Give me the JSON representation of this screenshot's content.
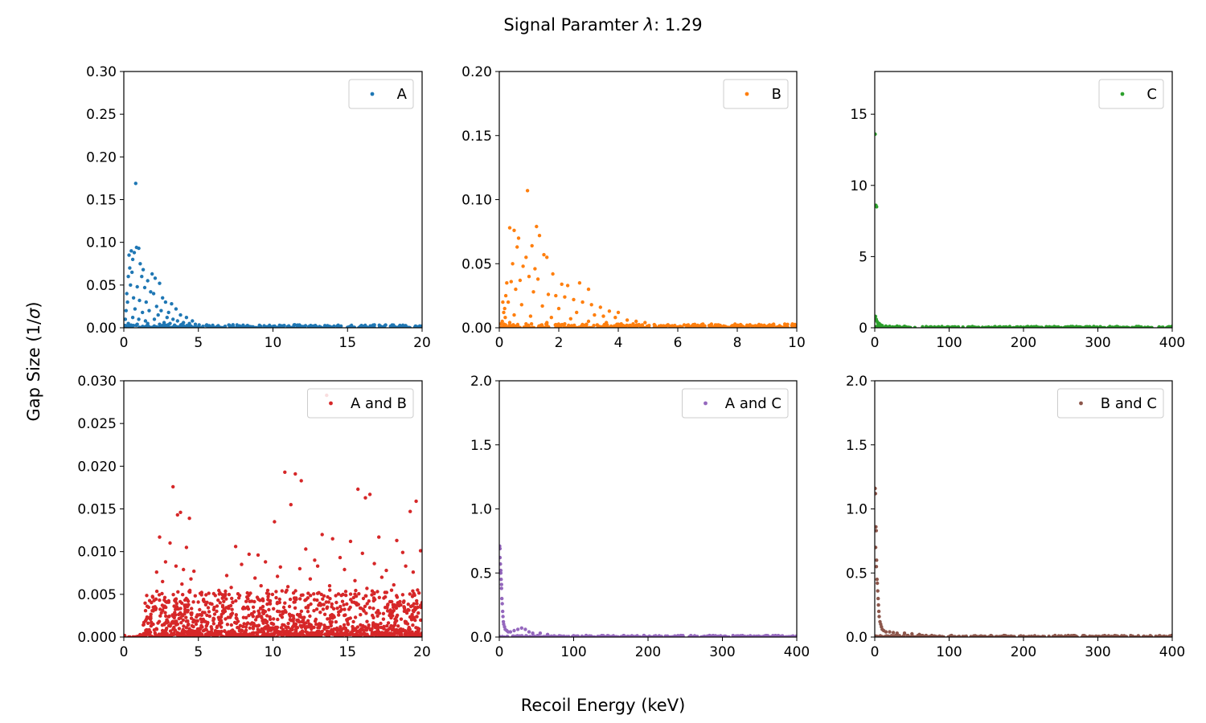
{
  "figure": {
    "title_prefix": "Signal Paramter ",
    "title_symbol": "λ",
    "title_suffix": ":  1.29",
    "xlabel": "Recoil Energy (keV)",
    "ylabel_prefix": "Gap Size (1/",
    "ylabel_symbol": "σ",
    "ylabel_suffix": ")"
  },
  "chart_data": [
    {
      "type": "scatter",
      "label": "A",
      "color": "#1f77b4",
      "xlim": [
        0,
        20
      ],
      "ylim": [
        0,
        0.3
      ],
      "xticks": [
        0,
        5,
        10,
        15,
        20
      ],
      "xtick_labels": [
        "0",
        "5",
        "10",
        "15",
        "20"
      ],
      "yticks": [
        0,
        0.05,
        0.1,
        0.15,
        0.2,
        0.25,
        0.3
      ],
      "ytick_labels": [
        "0.00",
        "0.05",
        "0.10",
        "0.15",
        "0.20",
        "0.25",
        "0.30"
      ],
      "legend": "top-right",
      "points": [
        [
          0.8,
          0.169
        ],
        [
          0.35,
          0.085
        ],
        [
          0.5,
          0.09
        ],
        [
          0.7,
          0.088
        ],
        [
          0.85,
          0.094
        ],
        [
          1.0,
          0.093
        ],
        [
          0.6,
          0.08
        ],
        [
          0.4,
          0.07
        ],
        [
          1.1,
          0.075
        ],
        [
          1.3,
          0.068
        ],
        [
          0.3,
          0.06
        ],
        [
          0.55,
          0.065
        ],
        [
          1.2,
          0.06
        ],
        [
          1.6,
          0.055
        ],
        [
          1.9,
          0.063
        ],
        [
          2.1,
          0.058
        ],
        [
          2.4,
          0.052
        ],
        [
          0.45,
          0.05
        ],
        [
          0.9,
          0.048
        ],
        [
          1.4,
          0.047
        ],
        [
          1.8,
          0.042
        ],
        [
          2.0,
          0.04
        ],
        [
          2.6,
          0.035
        ],
        [
          2.8,
          0.03
        ],
        [
          3.2,
          0.028
        ],
        [
          3.5,
          0.022
        ],
        [
          0.2,
          0.04
        ],
        [
          0.25,
          0.03
        ],
        [
          0.65,
          0.035
        ],
        [
          1.05,
          0.032
        ],
        [
          1.5,
          0.03
        ],
        [
          2.2,
          0.025
        ],
        [
          2.5,
          0.02
        ],
        [
          3.0,
          0.018
        ],
        [
          3.8,
          0.015
        ],
        [
          4.2,
          0.012
        ],
        [
          4.6,
          0.008
        ],
        [
          0.15,
          0.02
        ],
        [
          0.75,
          0.022
        ],
        [
          1.25,
          0.018
        ],
        [
          1.7,
          0.02
        ],
        [
          2.3,
          0.015
        ],
        [
          2.9,
          0.012
        ],
        [
          3.3,
          0.01
        ],
        [
          3.6,
          0.008
        ],
        [
          4.0,
          0.006
        ],
        [
          4.4,
          0.005
        ],
        [
          4.8,
          0.004
        ],
        [
          0.1,
          0.01
        ],
        [
          0.6,
          0.012
        ],
        [
          1.0,
          0.01
        ],
        [
          1.45,
          0.008
        ],
        [
          2.05,
          0.01
        ],
        [
          2.7,
          0.006
        ],
        [
          3.1,
          0.005
        ],
        [
          3.9,
          0.004
        ],
        [
          0.3,
          0.005
        ],
        [
          0.9,
          0.004
        ],
        [
          1.6,
          0.005
        ],
        [
          2.4,
          0.004
        ],
        [
          3.4,
          0.003
        ],
        [
          4.5,
          0.002
        ],
        [
          0.05,
          0.002
        ]
      ],
      "band": {
        "x": [
          0,
          20
        ],
        "y": [
          0,
          0.0035
        ],
        "density": 320
      }
    },
    {
      "type": "scatter",
      "label": "B",
      "color": "#ff7f0e",
      "xlim": [
        0,
        10
      ],
      "ylim": [
        0,
        0.2
      ],
      "xticks": [
        0,
        2,
        4,
        6,
        8,
        10
      ],
      "xtick_labels": [
        "0",
        "2",
        "4",
        "6",
        "8",
        "10"
      ],
      "yticks": [
        0,
        0.05,
        0.1,
        0.15,
        0.2
      ],
      "ytick_labels": [
        "0.00",
        "0.05",
        "0.10",
        "0.15",
        "0.20"
      ],
      "legend": "top-right",
      "points": [
        [
          0.95,
          0.107
        ],
        [
          0.35,
          0.078
        ],
        [
          0.5,
          0.076
        ],
        [
          0.65,
          0.07
        ],
        [
          1.25,
          0.079
        ],
        [
          1.35,
          0.072
        ],
        [
          0.6,
          0.063
        ],
        [
          1.5,
          0.057
        ],
        [
          1.6,
          0.055
        ],
        [
          1.1,
          0.064
        ],
        [
          0.9,
          0.055
        ],
        [
          0.45,
          0.05
        ],
        [
          0.8,
          0.048
        ],
        [
          1.2,
          0.046
        ],
        [
          0.25,
          0.035
        ],
        [
          0.4,
          0.036
        ],
        [
          0.7,
          0.037
        ],
        [
          1.0,
          0.04
        ],
        [
          1.3,
          0.038
        ],
        [
          1.8,
          0.042
        ],
        [
          2.1,
          0.034
        ],
        [
          2.3,
          0.033
        ],
        [
          2.7,
          0.035
        ],
        [
          3.0,
          0.03
        ],
        [
          0.55,
          0.03
        ],
        [
          1.15,
          0.028
        ],
        [
          1.65,
          0.026
        ],
        [
          1.9,
          0.025
        ],
        [
          2.2,
          0.024
        ],
        [
          2.5,
          0.022
        ],
        [
          2.8,
          0.02
        ],
        [
          3.1,
          0.018
        ],
        [
          3.4,
          0.016
        ],
        [
          3.7,
          0.013
        ],
        [
          4.0,
          0.012
        ],
        [
          0.3,
          0.02
        ],
        [
          0.75,
          0.018
        ],
        [
          1.45,
          0.017
        ],
        [
          2.0,
          0.015
        ],
        [
          2.6,
          0.012
        ],
        [
          3.2,
          0.01
        ],
        [
          3.5,
          0.009
        ],
        [
          3.9,
          0.008
        ],
        [
          4.3,
          0.006
        ],
        [
          4.6,
          0.005
        ],
        [
          4.9,
          0.004
        ],
        [
          0.15,
          0.012
        ],
        [
          0.2,
          0.008
        ],
        [
          0.5,
          0.01
        ],
        [
          1.05,
          0.009
        ],
        [
          1.75,
          0.008
        ],
        [
          2.4,
          0.007
        ],
        [
          3.0,
          0.005
        ],
        [
          3.6,
          0.004
        ],
        [
          4.1,
          0.003
        ],
        [
          4.5,
          0.003
        ],
        [
          0.1,
          0.005
        ],
        [
          0.05,
          0.003
        ],
        [
          0.35,
          0.004
        ],
        [
          0.9,
          0.003
        ],
        [
          1.6,
          0.004
        ],
        [
          2.2,
          0.003
        ],
        [
          3.3,
          0.002
        ],
        [
          4.8,
          0.002
        ],
        [
          0.12,
          0.02
        ],
        [
          0.22,
          0.025
        ],
        [
          0.18,
          0.015
        ]
      ],
      "band": {
        "x": [
          0,
          10
        ],
        "y": [
          0,
          0.003
        ],
        "density": 320
      }
    },
    {
      "type": "scatter",
      "label": "C",
      "color": "#2ca02c",
      "xlim": [
        0,
        400
      ],
      "ylim": [
        0,
        18
      ],
      "xticks": [
        0,
        100,
        200,
        300,
        400
      ],
      "xtick_labels": [
        "0",
        "100",
        "200",
        "300",
        "400"
      ],
      "yticks": [
        0,
        5,
        10,
        15
      ],
      "ytick_labels": [
        "0",
        "5",
        "10",
        "15"
      ],
      "legend": "top-right",
      "points": [
        [
          0.5,
          13.6
        ],
        [
          1.5,
          8.6
        ],
        [
          2.5,
          8.5
        ],
        [
          3,
          0.45
        ],
        [
          4,
          0.35
        ],
        [
          5,
          0.25
        ],
        [
          6,
          0.3
        ],
        [
          8,
          0.2
        ],
        [
          10,
          0.15
        ],
        [
          15,
          0.12
        ],
        [
          20,
          0.1
        ],
        [
          30,
          0.12
        ],
        [
          40,
          0.1
        ],
        [
          2,
          0.6
        ],
        [
          1,
          0.8
        ]
      ],
      "band": {
        "x": [
          0,
          400
        ],
        "y": [
          0,
          0.09
        ],
        "density": 320
      }
    },
    {
      "type": "scatter",
      "label": "A and B",
      "color": "#d62728",
      "xlim": [
        0,
        20
      ],
      "ylim": [
        0,
        0.03
      ],
      "xticks": [
        0,
        5,
        10,
        15,
        20
      ],
      "xtick_labels": [
        "0",
        "5",
        "10",
        "15",
        "20"
      ],
      "yticks": [
        0,
        0.005,
        0.01,
        0.015,
        0.02,
        0.025,
        0.03
      ],
      "ytick_labels": [
        "0.000",
        "0.005",
        "0.010",
        "0.015",
        "0.020",
        "0.025",
        "0.030"
      ],
      "legend": "top-right",
      "points": [
        [
          13.6,
          0.0283
        ],
        [
          10.8,
          0.0193
        ],
        [
          11.5,
          0.0191
        ],
        [
          11.9,
          0.0183
        ],
        [
          15.7,
          0.0173
        ],
        [
          16.5,
          0.0167
        ],
        [
          16.2,
          0.0163
        ],
        [
          19.6,
          0.0159
        ],
        [
          19.2,
          0.0147
        ],
        [
          3.3,
          0.0176
        ],
        [
          3.8,
          0.0146
        ],
        [
          3.6,
          0.0143
        ],
        [
          4.4,
          0.0139
        ],
        [
          11.2,
          0.0155
        ],
        [
          10.1,
          0.0135
        ],
        [
          2.4,
          0.0117
        ],
        [
          3.1,
          0.011
        ],
        [
          4.2,
          0.0105
        ],
        [
          13.3,
          0.012
        ],
        [
          14.0,
          0.0115
        ],
        [
          17.1,
          0.0117
        ],
        [
          18.3,
          0.0113
        ],
        [
          15.2,
          0.0112
        ],
        [
          12.2,
          0.0103
        ],
        [
          7.5,
          0.0106
        ],
        [
          8.4,
          0.0097
        ],
        [
          9.0,
          0.0096
        ],
        [
          19.9,
          0.0101
        ],
        [
          18.7,
          0.0099
        ],
        [
          16.0,
          0.0098
        ],
        [
          14.5,
          0.0093
        ],
        [
          12.8,
          0.009
        ],
        [
          2.8,
          0.0088
        ],
        [
          3.5,
          0.0083
        ],
        [
          4.0,
          0.0079
        ],
        [
          4.7,
          0.0077
        ],
        [
          2.2,
          0.0076
        ],
        [
          7.9,
          0.0085
        ],
        [
          9.5,
          0.0088
        ],
        [
          10.5,
          0.0082
        ],
        [
          11.8,
          0.008
        ],
        [
          13.0,
          0.0083
        ],
        [
          14.8,
          0.0079
        ],
        [
          16.8,
          0.0086
        ],
        [
          17.6,
          0.0078
        ],
        [
          18.9,
          0.0083
        ],
        [
          19.4,
          0.0076
        ],
        [
          6.9,
          0.0072
        ],
        [
          8.8,
          0.0069
        ],
        [
          10.3,
          0.0071
        ],
        [
          12.5,
          0.0068
        ],
        [
          15.5,
          0.0066
        ],
        [
          17.3,
          0.007
        ],
        [
          2.6,
          0.0065
        ],
        [
          3.9,
          0.0062
        ],
        [
          4.5,
          0.0068
        ],
        [
          7.2,
          0.0058
        ],
        [
          9.2,
          0.006
        ],
        [
          11.0,
          0.0059
        ],
        [
          13.8,
          0.006
        ],
        [
          16.3,
          0.0057
        ],
        [
          18.1,
          0.0061
        ],
        [
          19.7,
          0.0055
        ]
      ],
      "band": {
        "x": [
          1.3,
          20
        ],
        "y": [
          0.0003,
          0.0055
        ],
        "density": 1150
      },
      "band_low": {
        "x": [
          0,
          20
        ],
        "y": [
          0,
          0.0003
        ],
        "density": 230
      }
    },
    {
      "type": "scatter",
      "label": "A and C",
      "color": "#9467bd",
      "xlim": [
        0,
        400
      ],
      "ylim": [
        0,
        2.0
      ],
      "xticks": [
        0,
        100,
        200,
        300,
        400
      ],
      "xtick_labels": [
        "0",
        "100",
        "200",
        "300",
        "400"
      ],
      "yticks": [
        0,
        0.5,
        1.0,
        1.5,
        2.0
      ],
      "ytick_labels": [
        "0.0",
        "0.5",
        "1.0",
        "1.5",
        "2.0"
      ],
      "legend": "top-right",
      "points": [
        [
          0.5,
          0.71
        ],
        [
          1,
          0.69
        ],
        [
          1.5,
          0.57
        ],
        [
          2,
          0.52
        ],
        [
          2.5,
          0.45
        ],
        [
          3,
          0.38
        ],
        [
          3.5,
          0.3
        ],
        [
          4,
          0.26
        ],
        [
          4.5,
          0.2
        ],
        [
          5,
          0.16
        ],
        [
          5.5,
          0.12
        ],
        [
          6,
          0.1
        ],
        [
          7,
          0.08
        ],
        [
          8,
          0.06
        ],
        [
          10,
          0.05
        ],
        [
          12,
          0.04
        ],
        [
          15,
          0.04
        ],
        [
          20,
          0.05
        ],
        [
          25,
          0.06
        ],
        [
          30,
          0.07
        ],
        [
          35,
          0.06
        ],
        [
          40,
          0.04
        ],
        [
          45,
          0.03
        ],
        [
          55,
          0.03
        ],
        [
          65,
          0.02
        ],
        [
          1,
          0.62
        ],
        [
          2,
          0.5
        ],
        [
          3,
          0.41
        ]
      ],
      "band": {
        "x": [
          0,
          400
        ],
        "y": [
          0,
          0.012
        ],
        "density": 320
      }
    },
    {
      "type": "scatter",
      "label": "B and C",
      "color": "#8c564b",
      "xlim": [
        0,
        400
      ],
      "ylim": [
        0,
        2.0
      ],
      "xticks": [
        0,
        100,
        200,
        300,
        400
      ],
      "xtick_labels": [
        "0",
        "100",
        "200",
        "300",
        "400"
      ],
      "yticks": [
        0,
        0.5,
        1.0,
        1.5,
        2.0
      ],
      "ytick_labels": [
        "0.0",
        "0.5",
        "1.0",
        "1.5",
        "2.0"
      ],
      "legend": "top-right",
      "points": [
        [
          0.5,
          1.16
        ],
        [
          1,
          1.12
        ],
        [
          1.5,
          0.86
        ],
        [
          2,
          0.83
        ],
        [
          2.5,
          0.6
        ],
        [
          3,
          0.45
        ],
        [
          3.5,
          0.42
        ],
        [
          4,
          0.36
        ],
        [
          4.5,
          0.3
        ],
        [
          5,
          0.25
        ],
        [
          5.5,
          0.2
        ],
        [
          6,
          0.16
        ],
        [
          7,
          0.12
        ],
        [
          8,
          0.1
        ],
        [
          9,
          0.08
        ],
        [
          10,
          0.06
        ],
        [
          12,
          0.05
        ],
        [
          15,
          0.04
        ],
        [
          20,
          0.04
        ],
        [
          25,
          0.035
        ],
        [
          30,
          0.03
        ],
        [
          40,
          0.03
        ],
        [
          50,
          0.025
        ],
        [
          60,
          0.02
        ],
        [
          1.2,
          0.7
        ],
        [
          2.2,
          0.55
        ]
      ],
      "band": {
        "x": [
          0,
          400
        ],
        "y": [
          0,
          0.012
        ],
        "density": 320
      }
    }
  ]
}
